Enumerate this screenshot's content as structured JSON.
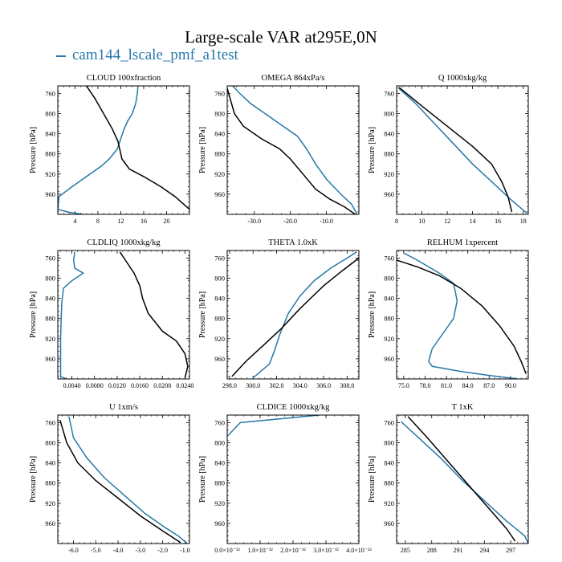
{
  "figure": {
    "title": "Large-scale VAR at295E,0N",
    "legend_label": "cam144_lscale_pmf_a1test",
    "colors": {
      "series": "#2678a8",
      "reference": "#000000"
    }
  },
  "chart_data": [
    {
      "type": "line",
      "title": "CLOUD  100xfraction",
      "ylabel": "Pressure [hPa]",
      "ylim": [
        745,
        1000
      ],
      "yticks": [
        760,
        800,
        840,
        880,
        920,
        960
      ],
      "ytick_labels": [
        "760",
        "800",
        "840",
        "880",
        "920",
        "960"
      ],
      "xlim": [
        1.0,
        24.0
      ],
      "xticks": [
        4,
        8,
        12,
        16,
        20
      ],
      "xtick_labels": [
        "4",
        "8",
        "12",
        "16",
        "20"
      ],
      "series": [
        {
          "name": "blue",
          "x": [
            15.0,
            14.9,
            14.6,
            14.0,
            13.2,
            12.6,
            12.0,
            11.4,
            10.0,
            8.5,
            6.0,
            3.5,
            1.2,
            1.0,
            3.0,
            5.5
          ],
          "y": [
            745,
            760,
            780,
            800,
            815,
            830,
            850,
            870,
            890,
            905,
            925,
            945,
            965,
            990,
            996,
            1000
          ]
        },
        {
          "name": "black",
          "x": [
            6.0,
            7.5,
            9.0,
            10.5,
            11.5,
            12.2,
            13.5,
            16.0,
            19.0,
            21.5,
            24.0
          ],
          "y": [
            745,
            770,
            800,
            830,
            855,
            890,
            910,
            925,
            945,
            965,
            990
          ]
        }
      ]
    },
    {
      "type": "line",
      "title": "OMEGA  864xPa/s",
      "ylabel": "Pressure [hPa]",
      "ylim": [
        745,
        1000
      ],
      "yticks": [
        760,
        800,
        840,
        880,
        920,
        960
      ],
      "ytick_labels": [
        "760",
        "800",
        "840",
        "880",
        "920",
        "960"
      ],
      "xlim": [
        -37.5,
        -1.0
      ],
      "xticks": [
        -30,
        -20,
        -10
      ],
      "xtick_labels": [
        "-30.0",
        "-20.0",
        "-10.0"
      ],
      "series": [
        {
          "name": "blue",
          "x": [
            -36.0,
            -34.0,
            -31.0,
            -27.0,
            -23.0,
            -18.0,
            -15.5,
            -13.0,
            -10.0,
            -6.0,
            -3.0,
            -1.5
          ],
          "y": [
            745,
            760,
            780,
            800,
            820,
            845,
            870,
            900,
            930,
            960,
            980,
            1000
          ]
        },
        {
          "name": "black",
          "x": [
            -37.5,
            -36.5,
            -35.5,
            -33.0,
            -28.0,
            -23.0,
            -20.0,
            -16.5,
            -13.0,
            -9.0,
            -5.0,
            -2.0
          ],
          "y": [
            750,
            775,
            800,
            825,
            850,
            870,
            890,
            920,
            950,
            970,
            985,
            1000
          ]
        }
      ]
    },
    {
      "type": "line",
      "title": "Q  1000xkg/kg",
      "ylabel": "Pressure [hPa]",
      "ylim": [
        745,
        1000
      ],
      "yticks": [
        760,
        800,
        840,
        880,
        920,
        960
      ],
      "ytick_labels": [
        "760",
        "800",
        "840",
        "880",
        "920",
        "960"
      ],
      "xlim": [
        8.0,
        18.4
      ],
      "xticks": [
        8,
        10,
        12,
        14,
        16,
        18
      ],
      "xtick_labels": [
        "8",
        "10",
        "12",
        "14",
        "16",
        "18"
      ],
      "series": [
        {
          "name": "blue",
          "x": [
            8.1,
            9.5,
            11.0,
            12.5,
            14.0,
            15.5,
            17.0,
            18.3
          ],
          "y": [
            748,
            780,
            820,
            860,
            900,
            935,
            970,
            998
          ]
        },
        {
          "name": "black",
          "x": [
            8.2,
            10.0,
            12.0,
            14.0,
            15.5,
            16.3,
            16.8,
            17.1
          ],
          "y": [
            748,
            785,
            825,
            865,
            900,
            935,
            965,
            995
          ]
        }
      ]
    },
    {
      "type": "line",
      "title": "CLDLIQ  1000xkg/kg",
      "ylabel": "Pressure [hPa]",
      "ylim": [
        745,
        1000
      ],
      "yticks": [
        760,
        800,
        840,
        880,
        920,
        960
      ],
      "ytick_labels": [
        "760",
        "800",
        "840",
        "880",
        "920",
        "960"
      ],
      "xlim": [
        0.0015,
        0.0248
      ],
      "xticks": [
        0.004,
        0.008,
        0.012,
        0.016,
        0.02,
        0.024
      ],
      "xtick_labels": [
        "0.0040",
        "0.0080",
        "0.0120",
        "0.0160",
        "0.0200",
        "0.0240"
      ],
      "series": [
        {
          "name": "blue",
          "x": [
            0.0045,
            0.0043,
            0.0045,
            0.006,
            0.004,
            0.0025,
            0.0022,
            0.0021,
            0.002,
            0.002,
            0.002,
            0.003
          ],
          "y": [
            748,
            765,
            780,
            790,
            805,
            820,
            850,
            880,
            920,
            960,
            995,
            1000
          ]
        },
        {
          "name": "black",
          "x": [
            0.0125,
            0.0135,
            0.015,
            0.016,
            0.0165,
            0.0175,
            0.02,
            0.0225,
            0.024,
            0.0245,
            0.024
          ],
          "y": [
            748,
            765,
            790,
            815,
            840,
            870,
            905,
            925,
            950,
            975,
            998
          ]
        }
      ]
    },
    {
      "type": "line",
      "title": "THETA  1.0xK",
      "ylabel": "Pressure [hPa]",
      "ylim": [
        745,
        1000
      ],
      "yticks": [
        760,
        800,
        840,
        880,
        920,
        960
      ],
      "ytick_labels": [
        "760",
        "800",
        "840",
        "880",
        "920",
        "960"
      ],
      "xlim": [
        297.8,
        309.0
      ],
      "xticks": [
        298,
        300,
        302,
        304,
        306,
        308
      ],
      "xtick_labels": [
        "298.0",
        "300.0",
        "302.0",
        "304.0",
        "306.0",
        "308.0"
      ],
      "series": [
        {
          "name": "blue",
          "x": [
            308.8,
            308.0,
            306.6,
            305.2,
            304.0,
            303.0,
            302.3,
            301.8,
            301.4,
            300.0
          ],
          "y": [
            748,
            760,
            780,
            805,
            835,
            870,
            910,
            945,
            970,
            998
          ]
        },
        {
          "name": "black",
          "x": [
            309.0,
            307.6,
            306.0,
            304.0,
            302.4,
            300.8,
            299.4,
            298.2
          ],
          "y": [
            760,
            785,
            815,
            860,
            900,
            935,
            965,
            995
          ]
        }
      ]
    },
    {
      "type": "line",
      "title": "RELHUM  1xpercent",
      "ylabel": "Pressure [hPa]",
      "ylim": [
        745,
        1000
      ],
      "yticks": [
        760,
        800,
        840,
        880,
        920,
        960
      ],
      "ytick_labels": [
        "760",
        "800",
        "840",
        "880",
        "920",
        "960"
      ],
      "xlim": [
        74.0,
        92.5
      ],
      "xticks": [
        75,
        78,
        81,
        84,
        87,
        90
      ],
      "xtick_labels": [
        "75.0",
        "78.0",
        "81.0",
        "84.0",
        "87.0",
        "90.0"
      ],
      "series": [
        {
          "name": "blue",
          "x": [
            75.0,
            77.0,
            80.0,
            82.0,
            82.5,
            82.0,
            80.5,
            79.0,
            78.5,
            79.0,
            83.0,
            87.0,
            91.0
          ],
          "y": [
            750,
            765,
            790,
            810,
            845,
            880,
            910,
            940,
            965,
            975,
            985,
            993,
            1000
          ]
        },
        {
          "name": "black",
          "x": [
            74.0,
            77.0,
            80.0,
            83.0,
            86.0,
            88.5,
            90.5,
            91.5,
            92.2
          ],
          "y": [
            764,
            778,
            795,
            820,
            855,
            895,
            935,
            965,
            990
          ]
        }
      ]
    },
    {
      "type": "line",
      "title": "U  1xm/s",
      "ylabel": "Pressure [hPa]",
      "ylim": [
        745,
        1000
      ],
      "yticks": [
        760,
        800,
        840,
        880,
        920,
        960
      ],
      "ytick_labels": [
        "760",
        "800",
        "840",
        "880",
        "920",
        "960"
      ],
      "xlim": [
        -6.7,
        -0.8
      ],
      "xticks": [
        -6,
        -5,
        -4,
        -3,
        -2,
        -1
      ],
      "xtick_labels": [
        "-6.0",
        "-5.0",
        "-4.0",
        "-3.0",
        "-2.0",
        "-1.0"
      ],
      "series": [
        {
          "name": "blue",
          "x": [
            -6.2,
            -6.0,
            -5.4,
            -4.6,
            -3.7,
            -2.8,
            -2.0,
            -1.3,
            -0.9
          ],
          "y": [
            748,
            790,
            830,
            870,
            905,
            940,
            965,
            985,
            1000
          ]
        },
        {
          "name": "black",
          "x": [
            -6.6,
            -6.3,
            -5.8,
            -5.0,
            -4.0,
            -3.0,
            -2.0,
            -1.2
          ],
          "y": [
            755,
            800,
            840,
            875,
            910,
            945,
            975,
            998
          ]
        }
      ]
    },
    {
      "type": "line",
      "title": "CLDICE  1000xkg/kg",
      "ylabel": "Pressure [hPa]",
      "ylim": [
        745,
        1000
      ],
      "yticks": [
        760,
        800,
        840,
        880,
        920,
        960
      ],
      "ytick_labels": [
        "760",
        "800",
        "840",
        "880",
        "920",
        "960"
      ],
      "xlim": [
        0.0,
        4.0
      ],
      "xticks": [
        0.0,
        1.0,
        2.0,
        3.0,
        4.0
      ],
      "xtick_labels": [
        "0.0×10⁻³²",
        "1.0×10⁻³²",
        "2.0×10⁻³²",
        "3.0×10⁻³²",
        "4.0×10⁻³²"
      ],
      "series": [
        {
          "name": "blue",
          "x": [
            2.8,
            0.4,
            0.0
          ],
          "y": [
            745,
            760,
            787
          ]
        }
      ]
    },
    {
      "type": "line",
      "title": "T  1xK",
      "ylabel": "Pressure [hPa]",
      "ylim": [
        745,
        1000
      ],
      "yticks": [
        760,
        800,
        840,
        880,
        920,
        960
      ],
      "ytick_labels": [
        "760",
        "800",
        "840",
        "880",
        "920",
        "960"
      ],
      "xlim": [
        284.0,
        299.0
      ],
      "xticks": [
        285,
        288,
        291,
        294,
        297
      ],
      "xtick_labels": [
        "285",
        "288",
        "291",
        "294",
        "297"
      ],
      "series": [
        {
          "name": "blue",
          "x": [
            284.5,
            286.5,
            289.0,
            291.5,
            294.0,
            296.5,
            298.6,
            299.0
          ],
          "y": [
            758,
            790,
            830,
            875,
            915,
            955,
            985,
            1000
          ]
        },
        {
          "name": "black",
          "x": [
            285.3,
            287.5,
            290.0,
            292.5,
            294.5,
            296.5,
            297.5
          ],
          "y": [
            748,
            790,
            840,
            890,
            930,
            970,
            995
          ]
        }
      ]
    }
  ]
}
